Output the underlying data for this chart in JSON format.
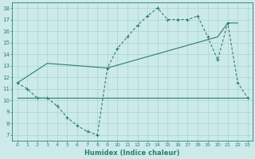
{
  "line1_x": [
    0,
    1,
    2,
    3,
    4,
    5,
    6,
    7,
    8,
    9,
    10,
    11,
    12,
    13,
    14,
    15,
    16,
    17,
    18,
    19,
    20,
    21,
    22,
    23
  ],
  "line1_y": [
    11.5,
    11.0,
    10.2,
    10.2,
    9.5,
    8.5,
    7.8,
    7.3,
    7.0,
    12.8,
    14.5,
    15.5,
    16.5,
    17.3,
    18.0,
    17.0,
    17.0,
    17.0,
    17.3,
    15.5,
    13.5,
    16.7,
    11.5,
    10.2
  ],
  "line2_x": [
    0,
    3,
    9,
    20,
    21,
    22
  ],
  "line2_y": [
    11.5,
    13.2,
    12.8,
    15.5,
    16.7,
    16.7
  ],
  "line3_x": [
    0,
    3,
    20,
    23
  ],
  "line3_y": [
    10.2,
    10.2,
    10.2,
    10.2
  ],
  "color": "#2e7d6e",
  "bg_color": "#cceaea",
  "grid_color": "#9ecece",
  "xlabel": "Humidex (Indice chaleur)",
  "xlim": [
    -0.5,
    23.5
  ],
  "ylim": [
    6.5,
    18.5
  ],
  "yticks": [
    7,
    8,
    9,
    10,
    11,
    12,
    13,
    14,
    15,
    16,
    17,
    18
  ],
  "xticks": [
    0,
    1,
    2,
    3,
    4,
    5,
    6,
    7,
    8,
    9,
    10,
    11,
    12,
    13,
    14,
    15,
    16,
    17,
    18,
    19,
    20,
    21,
    22,
    23
  ]
}
